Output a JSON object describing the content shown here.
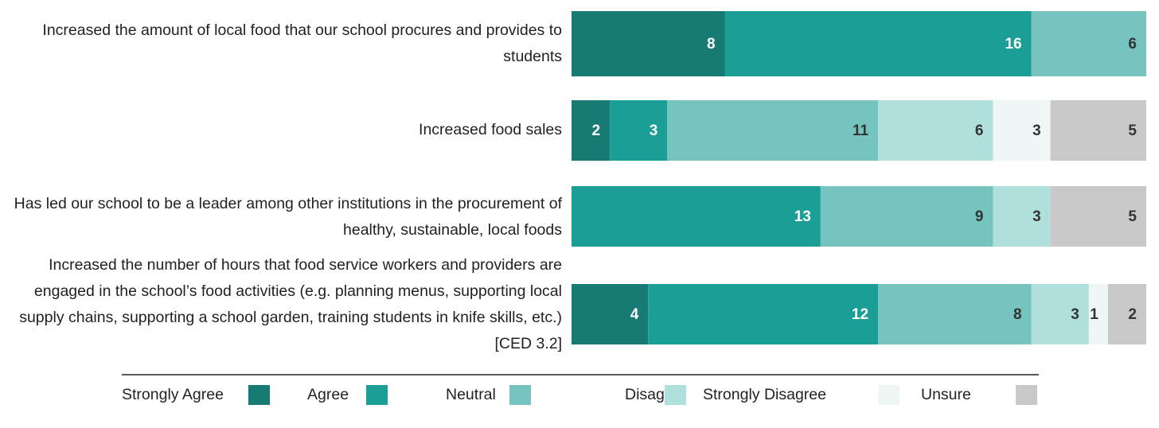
{
  "chart_data": {
    "type": "stacked-bar-horizontal",
    "categories": [
      "Increased the amount of local food that our school procures and provides to students",
      "Increased food sales",
      "Has led our school to be a leader among other institutions in the procurement of healthy, sustainable, local foods",
      "Increased the number of hours that food service workers and providers are engaged in the school’s food activities (e.g. planning menus, supporting local supply chains, supporting a school garden, training students in knife skills, etc.) [CED 3.2]"
    ],
    "series": [
      {
        "name": "Strongly Agree",
        "color": "#177a73",
        "values": [
          8,
          2,
          null,
          4
        ]
      },
      {
        "name": "Agree",
        "color": "#1a9e96",
        "values": [
          16,
          3,
          13,
          12
        ]
      },
      {
        "name": "Neutral",
        "color": "#76c4bf",
        "values": [
          6,
          11,
          9,
          8
        ]
      },
      {
        "name": "Disagree",
        "color": "#b0e0dc",
        "values": [
          null,
          6,
          3,
          3
        ]
      },
      {
        "name": "Strongly Disagree",
        "color": "#eef7f6",
        "values": [
          null,
          3,
          null,
          1
        ]
      },
      {
        "name": "Unsure",
        "color": "#c8c8c8",
        "values": [
          null,
          5,
          5,
          2
        ]
      }
    ],
    "xlim": [
      0,
      30
    ]
  }
}
